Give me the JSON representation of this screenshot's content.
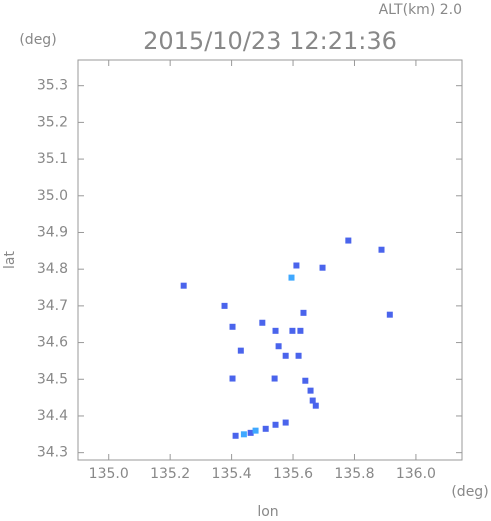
{
  "chart_data": {
    "type": "scatter",
    "title": "2015/10/23 12:21:36",
    "subtitle": "ALT(km) 2.0",
    "y_unit": "(deg)",
    "x_unit": "(deg)",
    "xlabel": "lon",
    "ylabel": "lat",
    "xlim": [
      134.9,
      136.15
    ],
    "ylim": [
      34.28,
      35.37
    ],
    "xticks": [
      {
        "value": 135.0,
        "label": "135.0"
      },
      135.2,
      135.4,
      135.6,
      135.8,
      {
        "value": 136.0,
        "label": "136.0"
      }
    ],
    "yticks": [
      34.3,
      34.4,
      34.5,
      34.6,
      34.7,
      34.8,
      34.9,
      {
        "value": 35.0,
        "label": "35.0"
      },
      35.1,
      35.2,
      35.3
    ],
    "series": [
      {
        "color": "#4a64ec",
        "x": [
          135.244,
          135.888,
          135.915,
          135.78,
          135.696,
          135.611,
          135.377,
          135.403,
          135.43,
          135.403,
          135.5,
          135.543,
          135.553,
          135.576,
          135.54,
          135.598,
          135.634,
          135.624,
          135.618,
          135.657,
          135.664,
          135.674,
          135.64,
          135.413,
          135.462,
          135.511,
          135.543,
          135.576
        ],
        "y": [
          34.755,
          34.853,
          34.676,
          34.878,
          34.804,
          34.81,
          34.7,
          34.643,
          34.578,
          34.502,
          34.654,
          34.632,
          34.59,
          34.564,
          34.502,
          34.632,
          34.681,
          34.632,
          34.564,
          34.469,
          34.442,
          34.428,
          34.496,
          34.346,
          34.354,
          34.365,
          34.376,
          34.382
        ]
      },
      {
        "color": "#3fa8ff",
        "x": [
          135.595,
          135.478,
          135.44
        ],
        "y": [
          34.777,
          34.36,
          34.35
        ]
      }
    ]
  }
}
